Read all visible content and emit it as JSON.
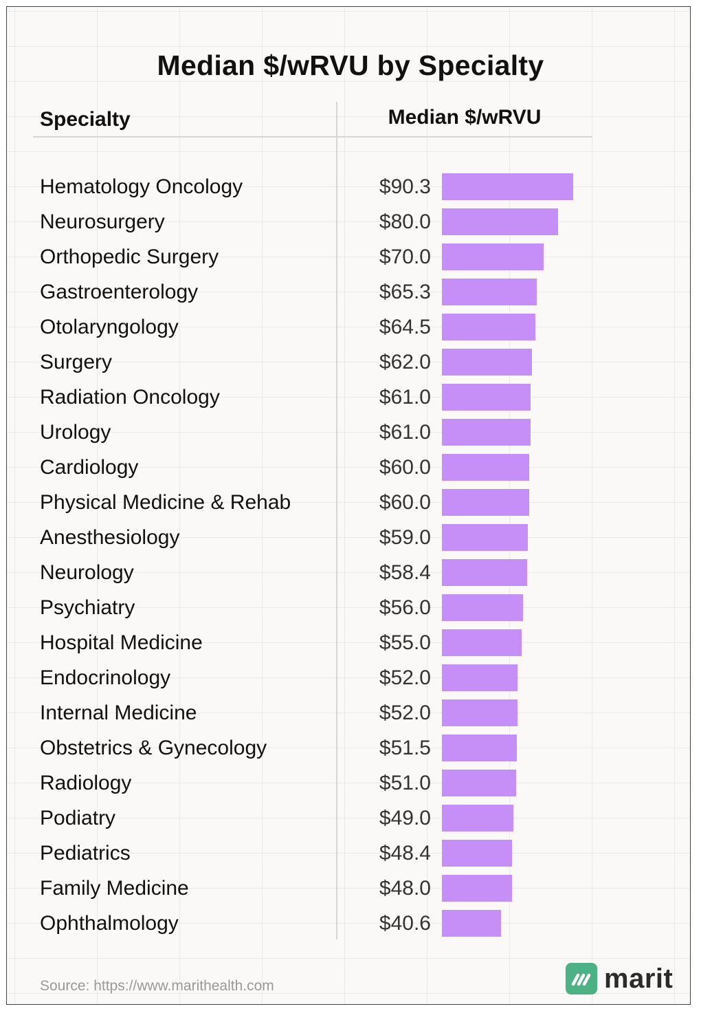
{
  "chart_data": {
    "type": "bar",
    "orientation": "horizontal",
    "title": "Median $/wRVU by Specialty",
    "columns": [
      "Specialty",
      "Median $/wRVU"
    ],
    "categories": [
      "Hematology Oncology",
      "Neurosurgery",
      "Orthopedic Surgery",
      "Gastroenterology",
      "Otolaryngology",
      "Surgery",
      "Radiation Oncology",
      "Urology",
      "Cardiology",
      "Physical Medicine & Rehab",
      "Anesthesiology",
      "Neurology",
      "Psychiatry",
      "Hospital Medicine",
      "Endocrinology",
      "Internal Medicine",
      "Obstetrics & Gynecology",
      "Radiology",
      "Podiatry",
      "Pediatrics",
      "Family Medicine",
      "Ophthalmology"
    ],
    "values": [
      90.3,
      80.0,
      70.0,
      65.3,
      64.5,
      62.0,
      61.0,
      61.0,
      60.0,
      60.0,
      59.0,
      58.4,
      56.0,
      55.0,
      52.0,
      52.0,
      51.5,
      51.0,
      49.0,
      48.4,
      48.0,
      40.6
    ],
    "value_labels": [
      "$90.3",
      "$80.0",
      "$70.0",
      "$65.3",
      "$64.5",
      "$62.0",
      "$61.0",
      "$61.0",
      "$60.0",
      "$60.0",
      "$59.0",
      "$58.4",
      "$56.0",
      "$55.0",
      "$52.0",
      "$52.0",
      "$51.5",
      "$51.0",
      "$49.0",
      "$48.4",
      "$48.0",
      "$40.6"
    ],
    "bar_color": "#c68ff7",
    "grid": true
  },
  "footer": {
    "source": "Source: https://www.marithealth.com",
    "logo_text": "marit",
    "logo_color": "#4cb184"
  }
}
